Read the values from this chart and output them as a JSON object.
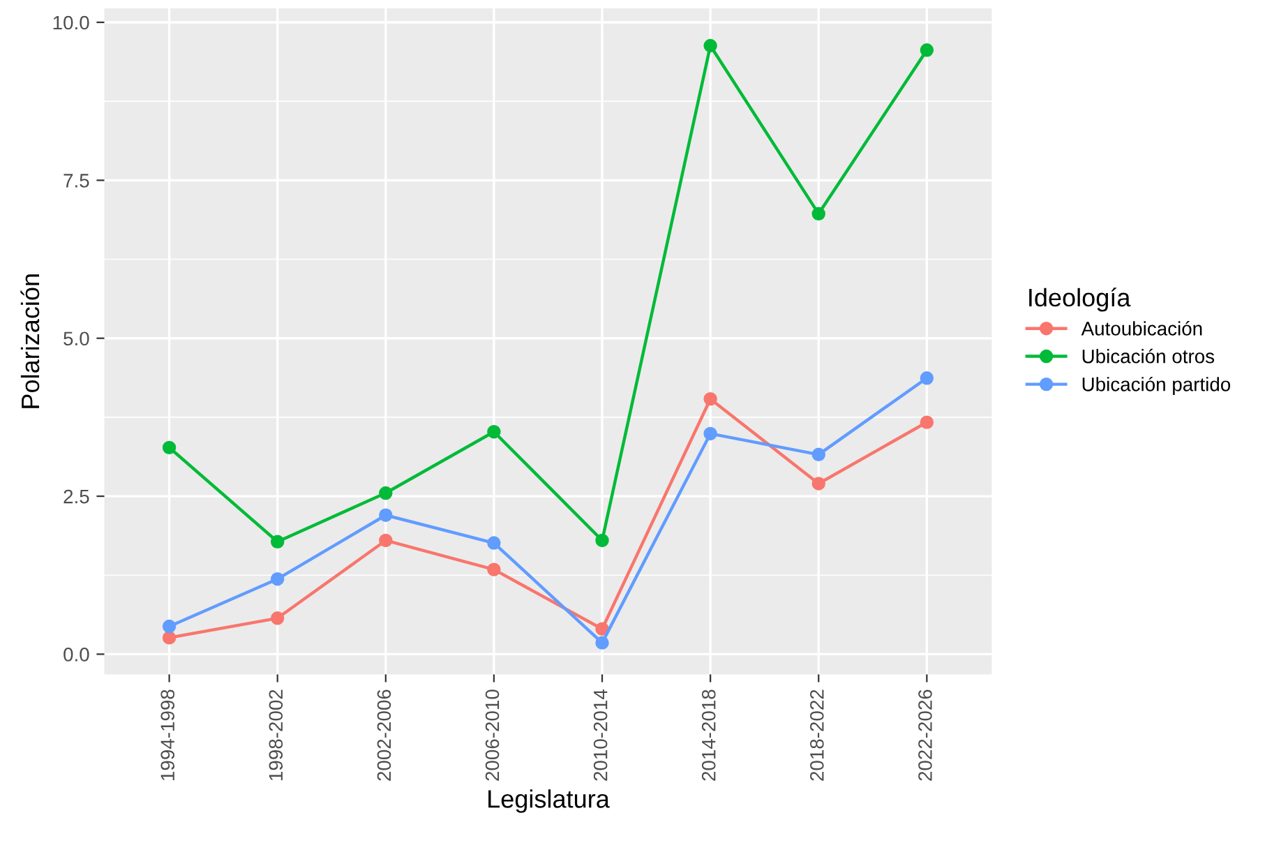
{
  "chart_data": {
    "type": "line",
    "xlabel": "Legislatura",
    "ylabel": "Polarización",
    "legend_title": "Ideología",
    "categories": [
      "1994-1998",
      "1998-2002",
      "2002-2006",
      "2006-2010",
      "2010-2014",
      "2014-2018",
      "2018-2022",
      "2022-2026"
    ],
    "series": [
      {
        "name": "Autoubicación",
        "color": "#f8766d",
        "values": [
          0.26,
          0.57,
          1.8,
          1.34,
          0.4,
          4.04,
          2.7,
          3.67
        ]
      },
      {
        "name": "Ubicación otros",
        "color": "#00ba38",
        "values": [
          3.27,
          1.78,
          2.55,
          3.52,
          1.8,
          9.63,
          6.97,
          9.56
        ]
      },
      {
        "name": "Ubicación partido",
        "color": "#619cff",
        "values": [
          0.44,
          1.19,
          2.2,
          1.76,
          0.18,
          3.49,
          3.16,
          4.37
        ]
      }
    ],
    "ylim": [
      -0.32,
      10.22
    ],
    "yticks": [
      {
        "value": 0,
        "label": "0.0"
      },
      {
        "value": 2.5,
        "label": "2.5"
      },
      {
        "value": 5,
        "label": "5.0"
      },
      {
        "value": 7.5,
        "label": "7.5"
      },
      {
        "value": 10,
        "label": "10.0"
      }
    ],
    "grid": true,
    "legend": "right",
    "marker": "circle",
    "line_style": "solid"
  }
}
